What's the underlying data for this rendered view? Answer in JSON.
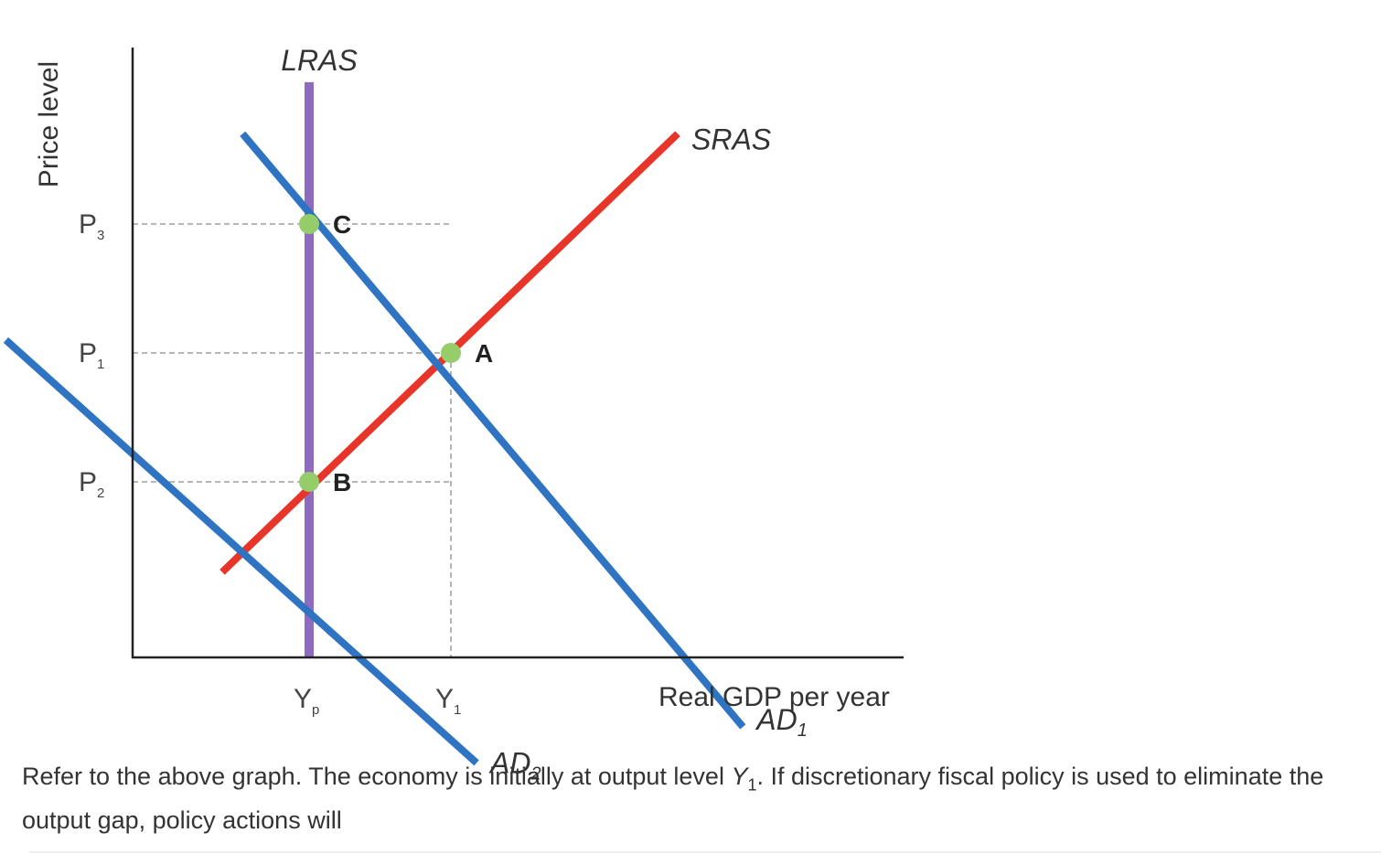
{
  "chart_data": {
    "type": "line",
    "xlabel": "Real GDP per year",
    "ylabel": "Price level",
    "x_ticks": [
      {
        "label": "Y",
        "sub": "p",
        "value": 1
      },
      {
        "label": "Y",
        "sub": "1",
        "value": 2
      }
    ],
    "y_ticks": [
      {
        "label": "P",
        "sub": "3",
        "value": 3
      },
      {
        "label": "P",
        "sub": "1",
        "value": 2
      },
      {
        "label": "P",
        "sub": "2",
        "value": 1
      }
    ],
    "series": [
      {
        "name": "LRAS",
        "name_main": "LRAS",
        "name_sub": "",
        "color": "#8f6bc0",
        "points": [
          [
            1,
            -0.7
          ],
          [
            1,
            4.1
          ]
        ]
      },
      {
        "name": "SRAS",
        "name_main": "SRAS",
        "name_sub": "",
        "color": "#e8352a",
        "points": [
          [
            0.387,
            0.3
          ],
          [
            3.6,
            3.7
          ]
        ]
      },
      {
        "name": "AD1",
        "name_main": "AD",
        "name_sub": "1",
        "color": "#2f74c2",
        "points": [
          [
            0.531,
            3.7
          ],
          [
            4.06,
            -0.9
          ]
        ]
      },
      {
        "name": "AD2",
        "name_main": "AD",
        "name_sub": "2",
        "color": "#2f74c2",
        "points": [
          [
            -1.139,
            2.1
          ],
          [
            2.181,
            -1.18
          ]
        ]
      }
    ],
    "points": [
      {
        "label": "C",
        "x": 1,
        "y": 3
      },
      {
        "label": "A",
        "x": 2,
        "y": 2
      },
      {
        "label": "B",
        "x": 1,
        "y": 1
      }
    ],
    "point_color": "#94cd6a",
    "axis_color": "#222222"
  },
  "question": {
    "before": "Refer to the above graph. The economy is initially at output level ",
    "var": "Y",
    "var_sub": "1",
    "after": ". If discretionary fiscal policy is used to eliminate the output gap, policy actions will"
  }
}
